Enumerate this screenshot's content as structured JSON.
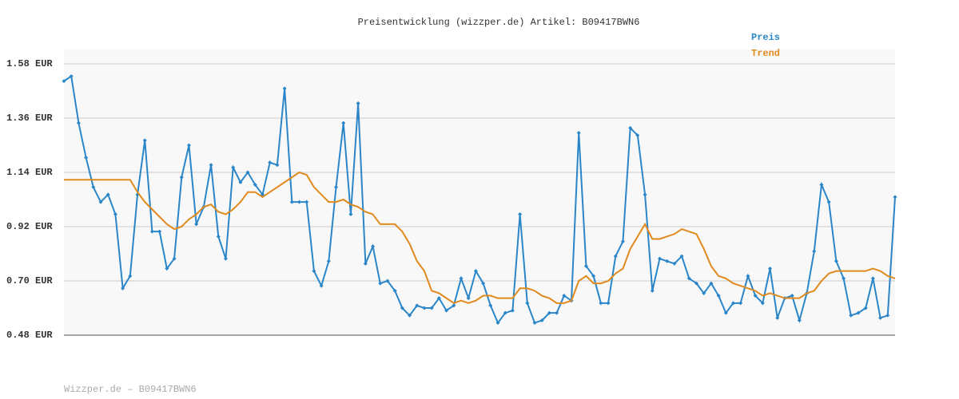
{
  "chart_data": {
    "type": "line",
    "title": "Preisentwicklung (wizzper.de) Artikel: B09417BWN6",
    "footer": "Wizzper.de – B09417BWN6",
    "categories": [
      null,
      null,
      null,
      null,
      null,
      null,
      null,
      null,
      null,
      null,
      null,
      null,
      null,
      null,
      null,
      null,
      null,
      null,
      null,
      null,
      null,
      null,
      null,
      null,
      null,
      null,
      null,
      null,
      null,
      null,
      null,
      null,
      null,
      null,
      null,
      null,
      null,
      null,
      null,
      null,
      null,
      null,
      null,
      null,
      null,
      null,
      null,
      null,
      null,
      null,
      null,
      null,
      null,
      null,
      null,
      null,
      null,
      null,
      null,
      null,
      null,
      null,
      null,
      null,
      null,
      null,
      null,
      null,
      null,
      null,
      null,
      null,
      null,
      null,
      null,
      null,
      null,
      null,
      null,
      null,
      null,
      null,
      null,
      null,
      null,
      null,
      null,
      null,
      null,
      null,
      null,
      null,
      null,
      null,
      null,
      null,
      null,
      null,
      null,
      null,
      null,
      null,
      null,
      null,
      null,
      null,
      null,
      null,
      null,
      null,
      null,
      null,
      null,
      null
    ],
    "series": [
      {
        "name": "Preis",
        "color": "#2a86c8",
        "markers": true,
        "values": [
          1.51,
          1.53,
          1.34,
          1.2,
          1.08,
          1.02,
          1.05,
          0.97,
          0.67,
          0.72,
          1.05,
          1.27,
          0.9,
          0.9,
          0.75,
          0.79,
          1.12,
          1.25,
          0.93,
          1.0,
          1.17,
          0.88,
          0.79,
          1.16,
          1.1,
          1.14,
          1.09,
          1.05,
          1.18,
          1.17,
          1.48,
          1.02,
          1.02,
          1.02,
          0.74,
          0.68,
          0.78,
          1.08,
          1.34,
          0.97,
          1.42,
          0.77,
          0.84,
          0.69,
          0.7,
          0.66,
          0.59,
          0.56,
          0.6,
          0.59,
          0.59,
          0.63,
          0.58,
          0.6,
          0.71,
          0.63,
          0.74,
          0.69,
          0.6,
          0.53,
          0.57,
          0.58,
          0.97,
          0.61,
          0.53,
          0.54,
          0.57,
          0.57,
          0.64,
          0.62,
          1.3,
          0.76,
          0.72,
          0.61,
          0.61,
          0.8,
          0.86,
          1.32,
          1.29,
          1.05,
          0.66,
          0.79,
          0.78,
          0.77,
          0.8,
          0.71,
          0.69,
          0.65,
          0.69,
          0.64,
          0.57,
          0.61,
          0.61,
          0.72,
          0.64,
          0.61,
          0.75,
          0.55,
          0.63,
          0.64,
          0.54,
          0.65,
          0.82,
          1.09,
          1.02,
          0.78,
          0.71,
          0.56,
          0.57,
          0.59,
          0.71,
          0.55,
          0.56,
          1.04
        ]
      },
      {
        "name": "Trend",
        "color": "#e08a1e",
        "markers": false,
        "values": [
          1.11,
          1.11,
          1.11,
          1.11,
          1.11,
          1.11,
          1.11,
          1.11,
          1.11,
          1.11,
          1.06,
          1.02,
          0.99,
          0.96,
          0.93,
          0.91,
          0.92,
          0.95,
          0.97,
          1.0,
          1.01,
          0.98,
          0.97,
          0.99,
          1.02,
          1.06,
          1.06,
          1.04,
          1.06,
          1.08,
          1.1,
          1.12,
          1.14,
          1.13,
          1.08,
          1.05,
          1.02,
          1.02,
          1.03,
          1.01,
          1.0,
          0.98,
          0.97,
          0.93,
          0.93,
          0.93,
          0.9,
          0.85,
          0.78,
          0.74,
          0.66,
          0.65,
          0.63,
          0.61,
          0.62,
          0.61,
          0.62,
          0.64,
          0.64,
          0.63,
          0.63,
          0.63,
          0.67,
          0.67,
          0.66,
          0.64,
          0.63,
          0.61,
          0.61,
          0.62,
          0.7,
          0.72,
          0.69,
          0.69,
          0.7,
          0.73,
          0.75,
          0.83,
          0.88,
          0.93,
          0.87,
          0.87,
          0.88,
          0.89,
          0.91,
          0.9,
          0.89,
          0.83,
          0.76,
          0.72,
          0.71,
          0.69,
          0.68,
          0.67,
          0.66,
          0.64,
          0.65,
          0.64,
          0.63,
          0.63,
          0.63,
          0.65,
          0.66,
          0.7,
          0.73,
          0.74,
          0.74,
          0.74,
          0.74,
          0.74,
          0.75,
          0.74,
          0.72,
          0.71
        ]
      }
    ],
    "ylim": [
      0.48,
      1.58
    ],
    "yticks": [
      {
        "value": 0.48,
        "label": "0.48 EUR"
      },
      {
        "value": 0.7,
        "label": "0.70 EUR"
      },
      {
        "value": 0.92,
        "label": "0.92 EUR"
      },
      {
        "value": 1.14,
        "label": "1.14 EUR"
      },
      {
        "value": 1.36,
        "label": "1.36 EUR"
      },
      {
        "value": 1.58,
        "label": "1.58 EUR"
      }
    ],
    "grid": true,
    "legend": "top-right"
  }
}
